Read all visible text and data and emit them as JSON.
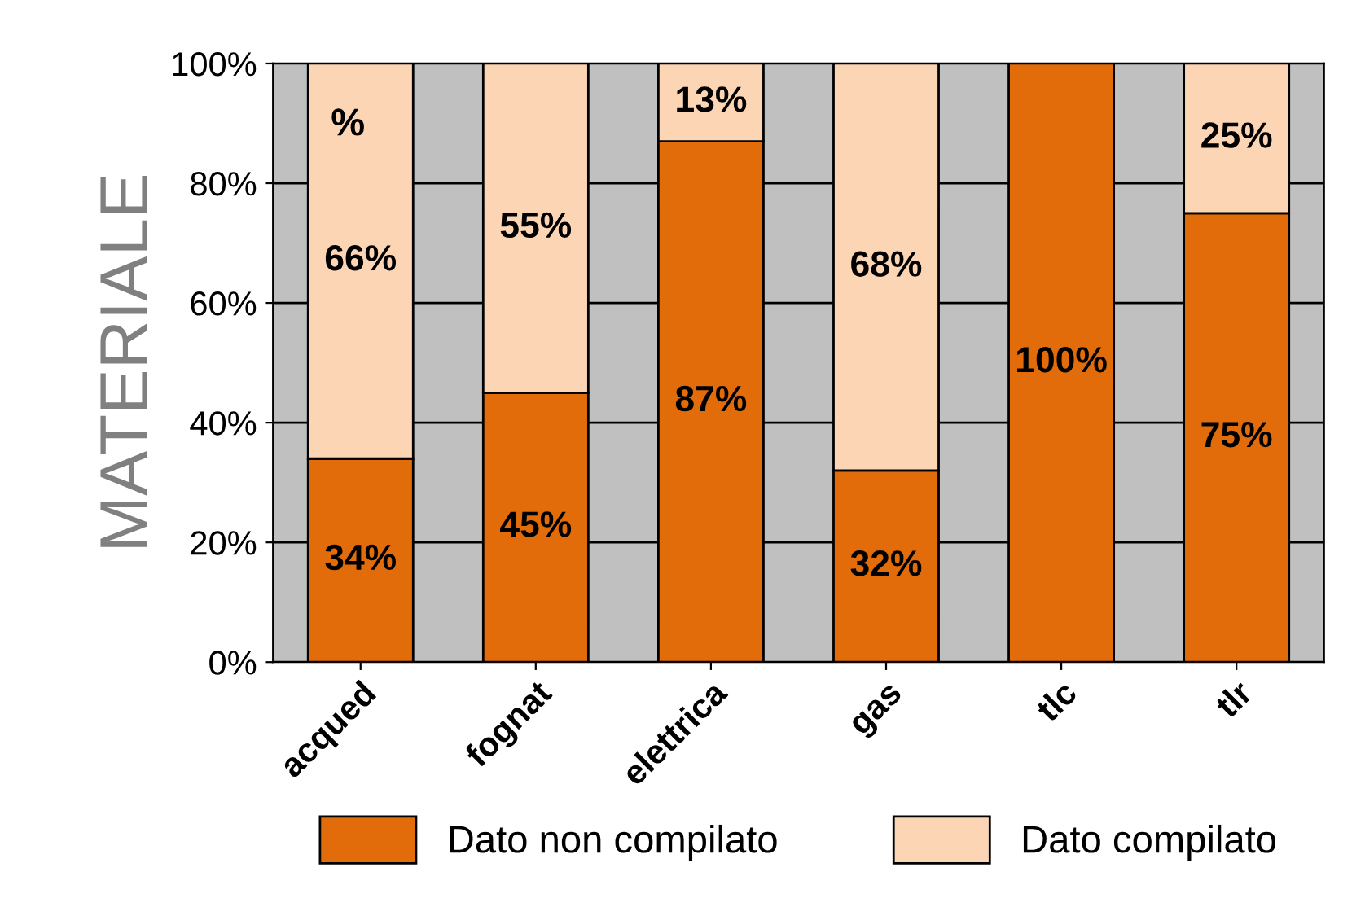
{
  "chart_data": {
    "type": "bar",
    "stacked": true,
    "ylabel": "MATERIALE",
    "categories": [
      "acqued",
      "fognat",
      "elettrica",
      "gas",
      "tlc",
      "tlr"
    ],
    "series": [
      {
        "name": "Dato non compilato",
        "color": "#e36c0a",
        "values": [
          34,
          45,
          87,
          32,
          100,
          75
        ],
        "value_labels": [
          "34%",
          "45%",
          "87%",
          "32%",
          "100%",
          "75%"
        ]
      },
      {
        "name": "Dato compilato",
        "color": "#fcd5b4",
        "values": [
          66,
          55,
          13,
          68,
          0,
          25
        ],
        "value_labels": [
          "66%",
          "55%",
          "13%",
          "68%",
          null,
          "25%"
        ]
      }
    ],
    "ylim": [
      0,
      100
    ],
    "yticks": [
      {
        "value": 0,
        "label": "0%"
      },
      {
        "value": 20,
        "label": "20%"
      },
      {
        "value": 40,
        "label": "40%"
      },
      {
        "value": 60,
        "label": "60%"
      },
      {
        "value": 80,
        "label": "80%"
      },
      {
        "value": 100,
        "label": "100%"
      }
    ],
    "grid": "y",
    "legend": "bottom",
    "annotations": [
      "%"
    ]
  }
}
